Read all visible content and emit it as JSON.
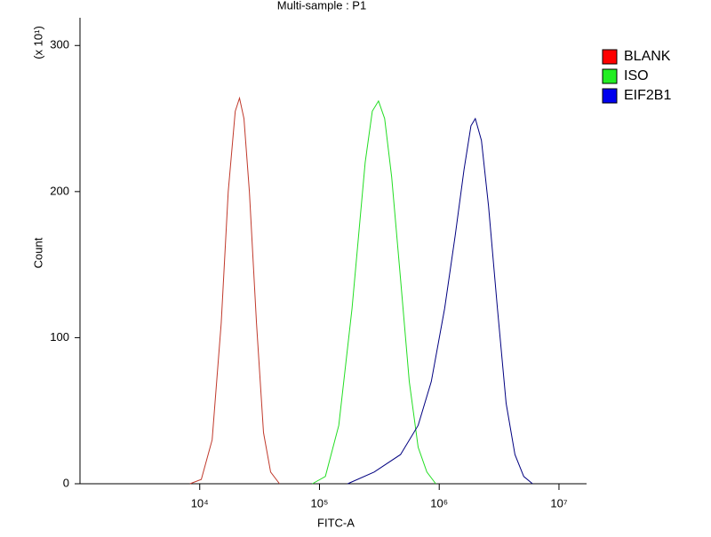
{
  "chart_data": {
    "type": "line",
    "title": "Multi-sample : P1",
    "x_label": "FITC-A",
    "y_label": "Count",
    "y_multiplier": "(x 10¹)",
    "x_log": true,
    "grid": false,
    "legend": "right",
    "xlim": [
      1000,
      17000000
    ],
    "ylim": [
      0,
      319
    ],
    "xticks": [
      {
        "value": 10000,
        "label": "10⁴"
      },
      {
        "value": 100000,
        "label": "10⁵"
      },
      {
        "value": 1000000,
        "label": "10⁶"
      },
      {
        "value": 10000000,
        "label": "10⁷"
      }
    ],
    "yticks": [
      0,
      100,
      200,
      300
    ],
    "series": [
      {
        "name": "BLANK",
        "color": "#c0392b",
        "legend_color": "#ff0000",
        "x": [
          8300,
          10300,
          12700,
          15100,
          17300,
          19800,
          21500,
          23400,
          26000,
          29800,
          34100,
          39100,
          46400
        ],
        "values": [
          0,
          3,
          30,
          110,
          200,
          255,
          264,
          250,
          200,
          110,
          35,
          8,
          0
        ]
      },
      {
        "name": "ISO",
        "color": "#22dd22",
        "legend_color": "#22ee22",
        "x": [
          87300,
          112000,
          145000,
          187000,
          241000,
          276000,
          311000,
          350000,
          401000,
          475000,
          562000,
          667000,
          789000,
          935000
        ],
        "values": [
          0,
          5,
          40,
          120,
          220,
          255,
          262,
          250,
          210,
          140,
          70,
          25,
          8,
          0
        ]
      },
      {
        "name": "EIF2B1",
        "color": "#000080",
        "legend_color": "#0000ee",
        "x": [
          172000,
          286000,
          475000,
          667000,
          859000,
          1110000,
          1360000,
          1610000,
          1840000,
          2000000,
          2250000,
          2580000,
          3060000,
          3620000,
          4290000,
          5080000,
          6010000
        ],
        "values": [
          0,
          8,
          20,
          40,
          70,
          120,
          170,
          215,
          245,
          250,
          235,
          190,
          120,
          55,
          20,
          5,
          0
        ]
      }
    ]
  }
}
